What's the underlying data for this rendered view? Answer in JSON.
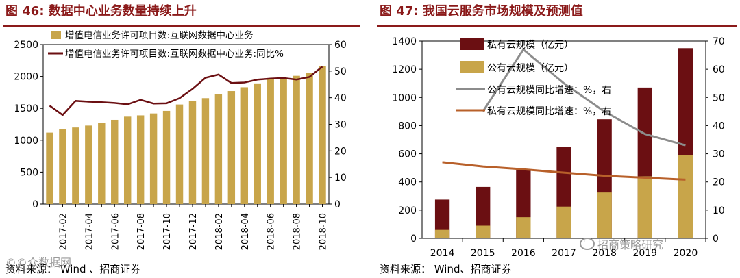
{
  "colors": {
    "gold": "#c8a54a",
    "darkred": "#6b0f12",
    "gray": "#8c8c8c",
    "orange": "#b8602a",
    "title": "#8b1a1a"
  },
  "watermarks": {
    "left": "©©众数据网",
    "right": "招商策略研究",
    "right_icon": "wechat-icon"
  },
  "chart_data": [
    {
      "type": "bar",
      "title": "图 46:  数据中心业务数量持续上升",
      "source": "资料来源：  Wind  、招商证券",
      "categories": [
        "2017-01",
        "2017-02",
        "2017-03",
        "2017-04",
        "2017-05",
        "2017-06",
        "2017-07",
        "2017-08",
        "2017-09",
        "2017-10",
        "2017-11",
        "2017-12",
        "2018-01",
        "2018-02",
        "2018-03",
        "2018-04",
        "2018-05",
        "2018-06",
        "2018-07",
        "2018-08",
        "2018-09",
        "2018-10"
      ],
      "tick_labels": [
        "2017-02",
        "2017-04",
        "2017-06",
        "2017-08",
        "2017-10",
        "2017-12",
        "2018-02",
        "2018-04",
        "2018-06",
        "2018-08",
        "2018-10"
      ],
      "series": [
        {
          "name": "增值电信业务许可项目数:互联网数据中心业务",
          "type": "bar",
          "axis": "left",
          "values": [
            1120,
            1170,
            1200,
            1230,
            1270,
            1320,
            1370,
            1390,
            1420,
            1460,
            1560,
            1610,
            1660,
            1720,
            1770,
            1830,
            1890,
            1960,
            1980,
            2010,
            2050,
            2160
          ]
        },
        {
          "name": "增值电信业务许可项目数:互联网数据中心业务:同比%",
          "type": "line",
          "axis": "right",
          "values": [
            37,
            33.5,
            38.8,
            38.5,
            38.3,
            38,
            37.5,
            39.2,
            37.8,
            37.9,
            39.8,
            43.3,
            47.5,
            48.7,
            45.5,
            45.7,
            46.8,
            47.2,
            47.4,
            46.8,
            47.8,
            51.7
          ]
        }
      ],
      "y_left": {
        "min": 0,
        "max": 2500,
        "ticks": [
          0,
          500,
          1000,
          1500,
          2000,
          2500
        ]
      },
      "y_right": {
        "min": 0,
        "max": 60,
        "ticks": [
          0,
          10,
          20,
          30,
          40,
          50,
          60
        ]
      },
      "legend_labels": [
        "增值电信业务许可项目数:互联网数据中心业务",
        "增值电信业务许可项目数:互联网数据中心业务:同比%"
      ]
    },
    {
      "type": "bar",
      "title": "图 47:  我国云服务市场规模及预测值",
      "source": "资料来源：  Wind、招商证券",
      "categories": [
        "2014",
        "2015",
        "2016",
        "2017",
        "2018",
        "2019",
        "2020"
      ],
      "tick_labels": [
        "2014",
        "2015",
        "2016",
        "2017",
        "2018",
        "2019",
        "2020"
      ],
      "series": [
        {
          "name": "私有云规模（亿元）",
          "type": "bar",
          "axis": "left",
          "values": [
            275,
            365,
            490,
            650,
            845,
            1070,
            1350
          ]
        },
        {
          "name": "公有云规模（亿元）",
          "type": "bar",
          "axis": "left",
          "values": [
            60,
            90,
            150,
            225,
            325,
            440,
            590
          ]
        },
        {
          "name": "公有云规模同比增速：%，右",
          "type": "line",
          "axis": "right",
          "values": [
            null,
            45,
            67,
            55,
            45,
            37,
            33
          ]
        },
        {
          "name": "私有云规模同比增速：%，右",
          "type": "line",
          "axis": "right",
          "values": [
            27,
            25.5,
            24.5,
            23.3,
            22.2,
            21.5,
            20.8
          ]
        }
      ],
      "y_left": {
        "min": 0,
        "max": 1400,
        "ticks": [
          0,
          200,
          400,
          600,
          800,
          1000,
          1200,
          1400
        ]
      },
      "y_right": {
        "min": 0,
        "max": 70,
        "ticks": [
          0,
          10,
          20,
          30,
          40,
          50,
          60,
          70
        ]
      },
      "legend_labels": [
        "私有云规模（亿元）",
        "公有云规模（亿元）",
        "公有云规模同比增速：%，右",
        "私有云规模同比增速：%，右"
      ]
    }
  ]
}
